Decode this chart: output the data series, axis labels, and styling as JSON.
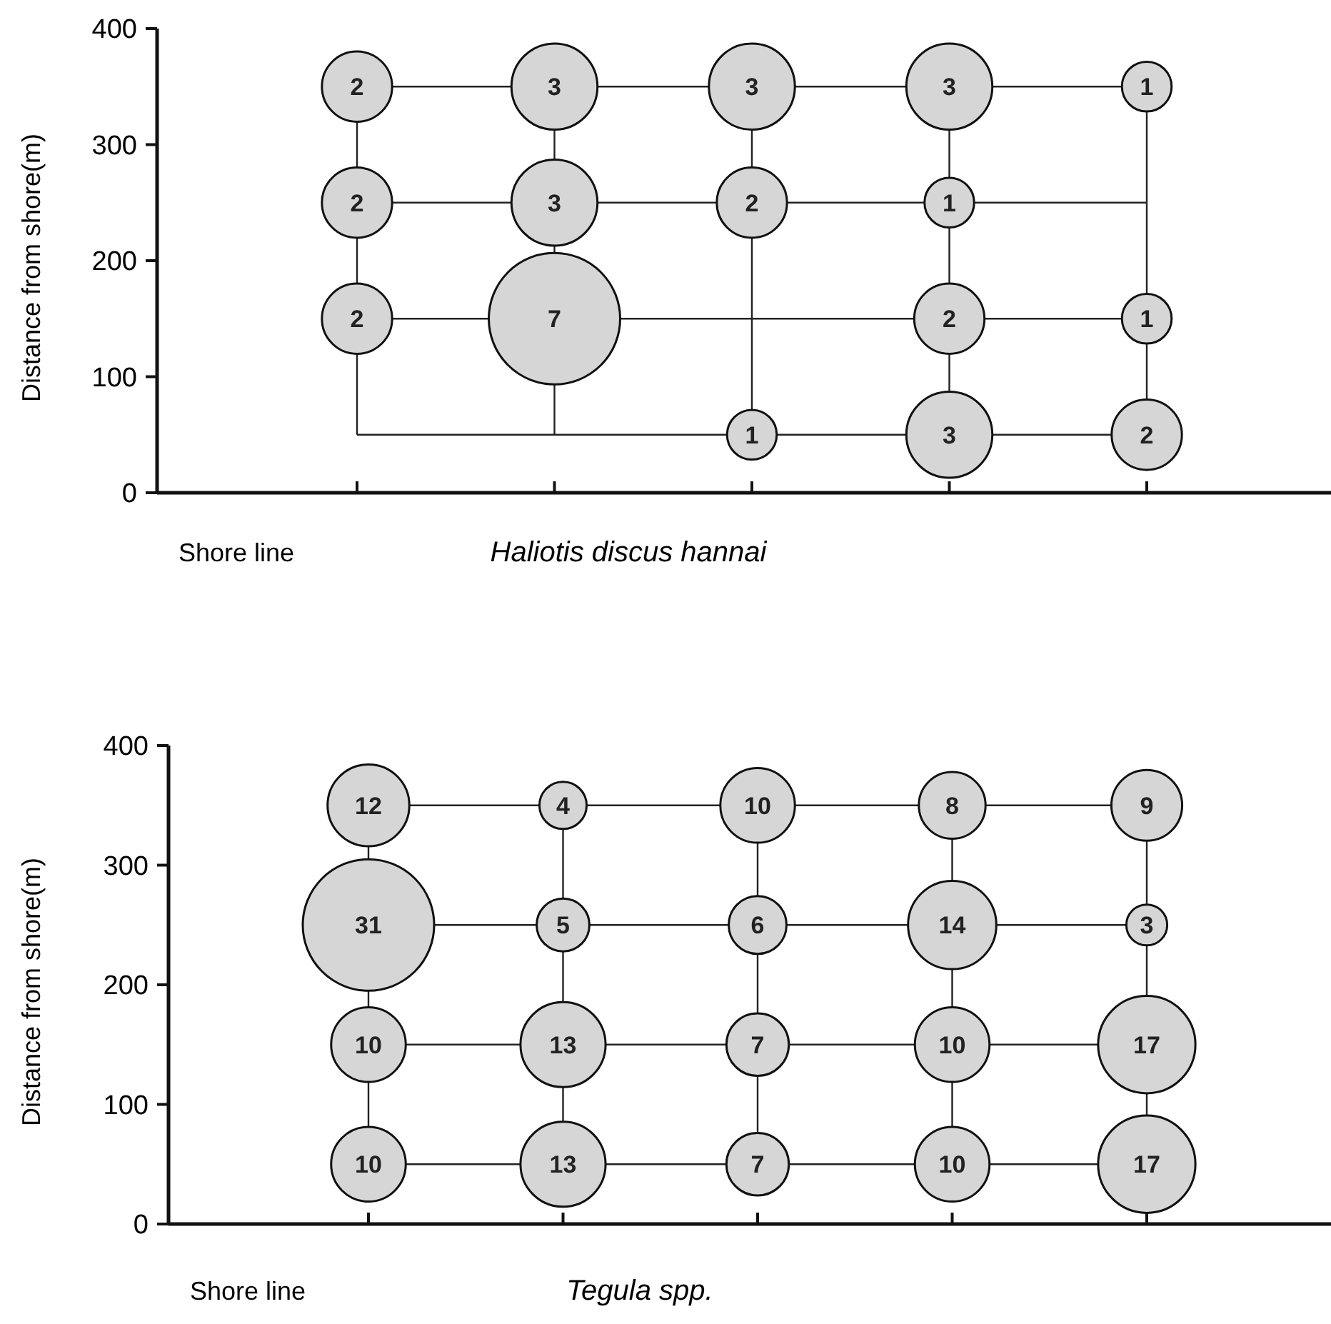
{
  "chart_data": [
    {
      "type": "bubble",
      "title": "Haliotis discus hannai",
      "ylabel": "Distance from shore(m)",
      "annotations": [
        "Shore line"
      ],
      "categories": [
        null,
        null,
        null,
        null,
        null
      ],
      "ylim": [
        0,
        400
      ],
      "yticks": [
        0,
        100,
        200,
        300,
        400
      ],
      "tick_labels": "y",
      "line_style": "solid",
      "series": [
        {
          "color": "#d6d6d6",
          "values": [
            350,
            350,
            350,
            350,
            350
          ],
          "sizes": [
            2,
            3,
            3,
            3,
            1
          ],
          "value_labels": [
            "2",
            "3",
            "3",
            "3",
            "1"
          ]
        },
        {
          "color": "#d6d6d6",
          "values": [
            250,
            250,
            250,
            250,
            null
          ],
          "sizes": [
            2,
            3,
            2,
            1,
            null
          ],
          "value_labels": [
            "2",
            "3",
            "2",
            "1",
            null
          ]
        },
        {
          "color": "#d6d6d6",
          "values": [
            150,
            150,
            null,
            150,
            150
          ],
          "sizes": [
            2,
            7,
            null,
            2,
            1
          ],
          "value_labels": [
            "2",
            "7",
            null,
            "2",
            "1"
          ]
        },
        {
          "color": "#d6d6d6",
          "values": [
            null,
            null,
            50,
            50,
            50
          ],
          "sizes": [
            null,
            null,
            1,
            3,
            2
          ],
          "value_labels": [
            null,
            null,
            "1",
            "3",
            "2"
          ]
        }
      ]
    },
    {
      "type": "bubble",
      "title": "Tegula spp.",
      "ylabel": "Distance from shore(m)",
      "annotations": [
        "Shore line"
      ],
      "categories": [
        null,
        null,
        null,
        null,
        null
      ],
      "ylim": [
        0,
        400
      ],
      "yticks": [
        0,
        100,
        200,
        300,
        400
      ],
      "tick_labels": "y",
      "line_style": "solid",
      "series": [
        {
          "color": "#d6d6d6",
          "values": [
            350,
            350,
            350,
            350,
            350
          ],
          "sizes": [
            12,
            4,
            10,
            8,
            9
          ],
          "value_labels": [
            "12",
            "4",
            "10",
            "8",
            "9"
          ]
        },
        {
          "color": "#d6d6d6",
          "values": [
            250,
            250,
            250,
            250,
            250
          ],
          "sizes": [
            31,
            5,
            6,
            14,
            3
          ],
          "value_labels": [
            "31",
            "5",
            "6",
            "14",
            "3"
          ]
        },
        {
          "color": "#d6d6d6",
          "values": [
            150,
            150,
            150,
            150,
            150
          ],
          "sizes": [
            10,
            13,
            7,
            10,
            17
          ],
          "value_labels": [
            "10",
            "13",
            "7",
            "10",
            "17"
          ]
        },
        {
          "color": "#d6d6d6",
          "values": [
            50,
            50,
            50,
            50,
            50
          ],
          "sizes": [
            10,
            13,
            7,
            10,
            17
          ],
          "value_labels": [
            "10",
            "13",
            "7",
            "10",
            "17"
          ]
        }
      ]
    }
  ]
}
